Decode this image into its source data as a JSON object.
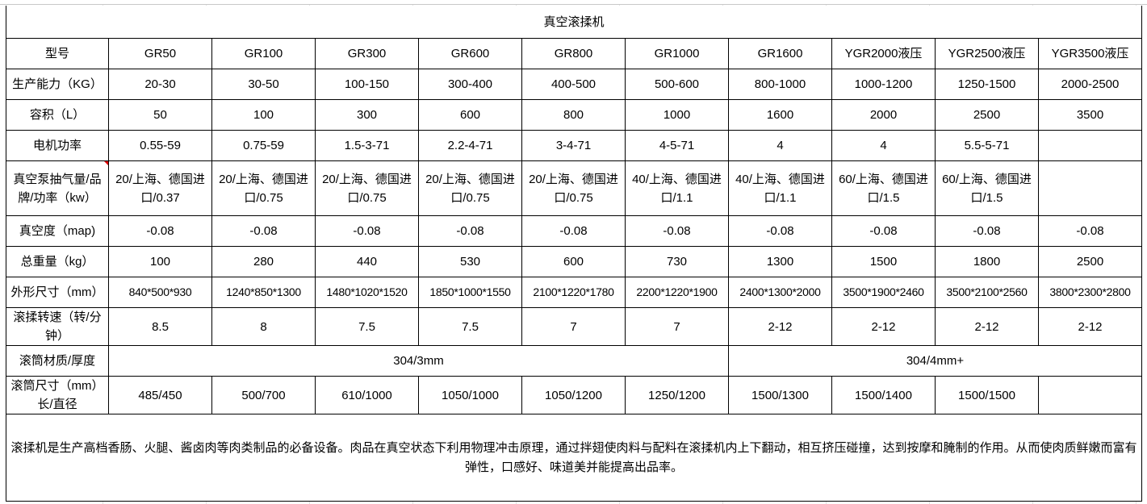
{
  "title": "真空滚揉机",
  "header": {
    "label": "型号",
    "models": [
      "GR50",
      "GR100",
      "GR300",
      "GR600",
      "GR800",
      "GR1000",
      "GR1600",
      "YGR2000液压",
      "YGR2500液压",
      "YGR3500液压"
    ]
  },
  "rows": [
    {
      "label": "生产能力（KG）",
      "values": [
        "20-30",
        "30-50",
        "100-150",
        "300-400",
        "400-500",
        "500-600",
        "800-1000",
        "1000-1200",
        "1250-1500",
        "2000-2500"
      ]
    },
    {
      "label": "容积（L）",
      "values": [
        "50",
        "100",
        "300",
        "600",
        "800",
        "1000",
        "1600",
        "2000",
        "2500",
        "3500"
      ]
    },
    {
      "label": "电机功率",
      "values": [
        "0.55-59",
        "0.75-59",
        "1.5-3-71",
        "2.2-4-71",
        "3-4-71",
        "4-5-71",
        "4",
        "4",
        "5.5-5-71",
        ""
      ]
    },
    {
      "label": "真空泵抽气量/品牌/功率（kw）",
      "values": [
        "20/上海、德国进口/0.37",
        "20/上海、德国进口/0.75",
        "20/上海、德国进口/0.75",
        "20/上海、德国进口/0.75",
        "20/上海、德国进口/0.75",
        "40/上海、德国进口/1.1",
        "40/上海、德国进口/1.1",
        "60/上海、德国进口/1.5",
        "60/上海、德国进口/1.5",
        ""
      ]
    },
    {
      "label": "真空度（map)",
      "values": [
        "-0.08",
        "-0.08",
        "-0.08",
        "-0.08",
        "-0.08",
        "-0.08",
        "-0.08",
        "-0.08",
        "-0.08",
        "-0.08"
      ]
    },
    {
      "label": "总重量（kg）",
      "values": [
        "100",
        "280",
        "440",
        "530",
        "600",
        "730",
        "1300",
        "1500",
        "1800",
        "2500"
      ]
    },
    {
      "label": "外形尺寸（mm）",
      "values": [
        "840*500*930",
        "1240*850*1300",
        "1480*1020*1520",
        "1850*1000*1550",
        "2100*1220*1780",
        "2200*1220*1900",
        "2400*1300*2000",
        "3500*1900*2460",
        "3500*2100*2560",
        "3800*2300*2800"
      ]
    },
    {
      "label": "滚揉转速（转/分钟）",
      "values": [
        "8.5",
        "8",
        "7.5",
        "7.5",
        "7",
        "7",
        "2-12",
        "2-12",
        "2-12",
        "2-12"
      ]
    }
  ],
  "material": {
    "label": "滚筒材质/厚度",
    "values": [
      "304/3mm",
      "304/4mm+"
    ]
  },
  "drum": {
    "label": "滚筒尺寸（mm）长/直径",
    "values": [
      "485/450",
      "500/700",
      "610/1000",
      "1050/1000",
      "1050/1200",
      "1250/1200",
      "1500/1300",
      "1500/1400",
      "1500/1500",
      ""
    ]
  },
  "description": "滚揉机是生产高档香肠、火腿、酱卤肉等肉类制品的必备设备。肉品在真空状态下利用物理冲击原理，通过拌翅使肉料与配料在滚揉机内上下翻动，相互挤压碰撞，达到按摩和腌制的作用。从而使肉质鲜嫩而富有弹性，口感好、味道美并能提高出品率。"
}
